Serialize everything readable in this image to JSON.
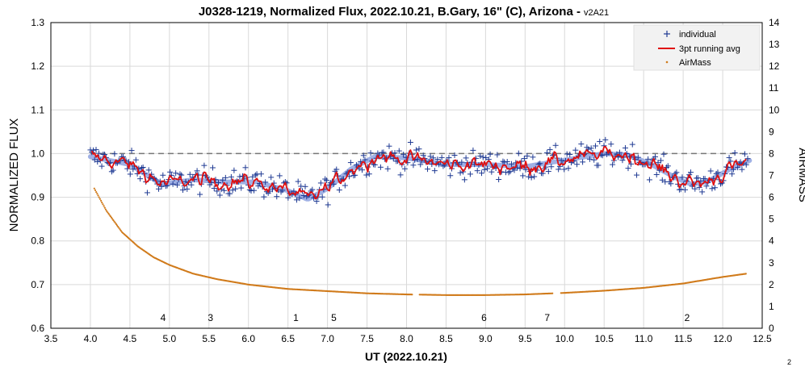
{
  "chart_data": {
    "type": "scatter",
    "title": "J0328-1219, Normalized Flux, 2022.10.21, B.Gary, 16\" (C), Arizona -",
    "title_suffix": "v2A21",
    "xlabel": "UT (2022.10.21)",
    "ylabel": "NORMALIZED FLUX",
    "y2label": "AIRMASS",
    "xlim": [
      3.5,
      12.5
    ],
    "ylim": [
      0.6,
      1.3
    ],
    "y2lim": [
      0,
      14
    ],
    "x_ticks": [
      "3.5",
      "4.0",
      "4.5",
      "5.0",
      "5.5",
      "6.0",
      "6.5",
      "7.0",
      "7.5",
      "8.0",
      "8.5",
      "9.0",
      "9.5",
      "10.0",
      "10.5",
      "11.0",
      "11.5",
      "12.0",
      "12.5"
    ],
    "y_ticks": [
      "0.6",
      "0.7",
      "0.8",
      "0.9",
      "1.0",
      "1.1",
      "1.2",
      "1.3"
    ],
    "y2_ticks": [
      "0",
      "1",
      "2",
      "3",
      "4",
      "5",
      "6",
      "7",
      "8",
      "9",
      "10",
      "11",
      "12",
      "13",
      "14"
    ],
    "grid": true,
    "legend_position": "top-right",
    "reference_line": 1.0,
    "series": [
      {
        "name": "individual",
        "color": "#1f3a93",
        "marker": "plus"
      },
      {
        "name": "3pt running avg",
        "color": "#e01010",
        "line": "solid"
      },
      {
        "name": "AirMass",
        "color": "#d07a1a",
        "marker": "dot",
        "axis": "right"
      }
    ],
    "smooth_trend": {
      "color": "#8fa3e0",
      "x": [
        4.0,
        4.5,
        4.9,
        5.3,
        5.7,
        6.1,
        6.5,
        6.75,
        7.0,
        7.3,
        7.6,
        8.0,
        8.5,
        9.0,
        9.5,
        10.0,
        10.5,
        10.8,
        11.1,
        11.4,
        11.6,
        11.8,
        12.1,
        12.35
      ],
      "y": [
        0.993,
        0.975,
        0.93,
        0.94,
        0.935,
        0.935,
        0.915,
        0.895,
        0.92,
        0.965,
        0.993,
        0.99,
        0.975,
        0.975,
        0.97,
        0.985,
        1.0,
        0.997,
        0.975,
        0.945,
        0.93,
        0.935,
        0.965,
        0.985
      ]
    },
    "airmass_curve": {
      "x": [
        4.05,
        4.2,
        4.4,
        4.6,
        4.8,
        5.0,
        5.3,
        5.6,
        6.0,
        6.5,
        7.0,
        7.5,
        8.0,
        8.5,
        9.0,
        9.5,
        10.0,
        10.5,
        11.0,
        11.5,
        12.0,
        12.3
      ],
      "y": [
        6.4,
        5.4,
        4.4,
        3.75,
        3.25,
        2.9,
        2.5,
        2.25,
        2.0,
        1.8,
        1.7,
        1.6,
        1.55,
        1.52,
        1.52,
        1.55,
        1.62,
        1.72,
        1.85,
        2.05,
        2.35,
        2.5
      ]
    },
    "annotations": [
      {
        "text": "4",
        "x": 4.92
      },
      {
        "text": "3",
        "x": 5.52
      },
      {
        "text": "1",
        "x": 6.6
      },
      {
        "text": "5",
        "x": 7.08
      },
      {
        "text": "6",
        "x": 8.98
      },
      {
        "text": "7",
        "x": 9.78
      },
      {
        "text": "2",
        "x": 11.55
      }
    ]
  },
  "page_number": "2"
}
